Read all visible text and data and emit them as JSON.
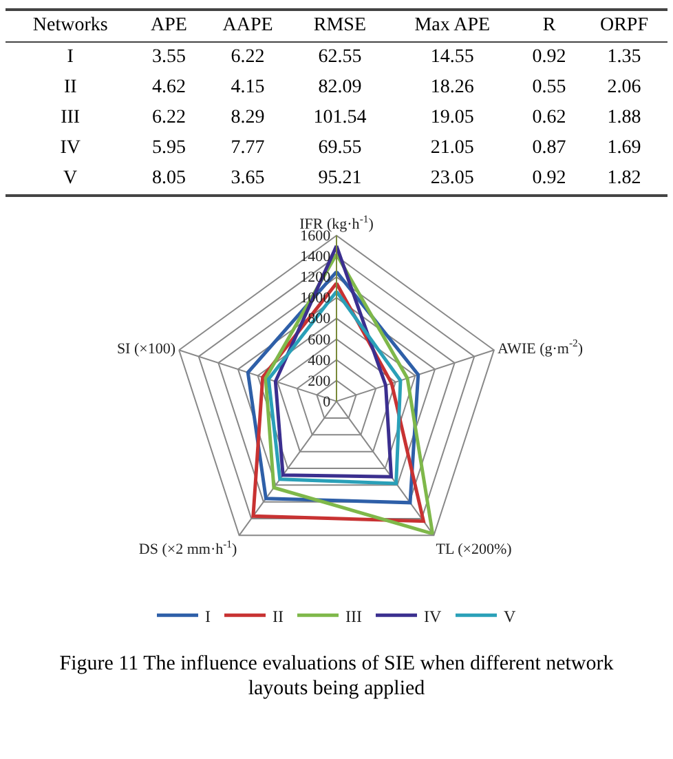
{
  "chart_data": [
    {
      "type": "heatmap",
      "ylabel": "Networks",
      "categories": [
        "APE",
        "AAPE",
        "RMSE",
        "Max APE",
        "R",
        "ORPF"
      ],
      "y_categories": [
        "I",
        "II",
        "III",
        "IV",
        "V"
      ],
      "data_labels": true,
      "cells": [
        [
          3.55,
          6.22,
          62.55,
          14.55,
          0.92,
          1.35
        ],
        [
          4.62,
          4.15,
          82.09,
          18.26,
          0.55,
          2.06
        ],
        [
          6.22,
          8.29,
          101.54,
          19.05,
          0.62,
          1.88
        ],
        [
          5.95,
          7.77,
          69.55,
          21.05,
          0.87,
          1.69
        ],
        [
          8.05,
          3.65,
          95.21,
          23.05,
          0.92,
          1.82
        ]
      ]
    },
    {
      "type": "radar",
      "title": "Figure 11    The influence evaluations of SIE when different network layouts being applied",
      "categories": [
        "IFR (kg·h$^{-1}$)",
        "AWIE (g·m$^{-2}$)",
        "TL (×200%)",
        "DS (×2 mm·h$^{-1}$)",
        "SI (×100)"
      ],
      "ylim": [
        0,
        1600
      ],
      "yticks": [
        0,
        200,
        400,
        600,
        800,
        1000,
        1200,
        1400,
        1600
      ],
      "grid": true,
      "legend": "bottom",
      "series": [
        {
          "name": "I",
          "color": "#2e5fa8",
          "values": [
            1250,
            830,
            1210,
            1160,
            900
          ]
        },
        {
          "name": "II",
          "color": "#c83232",
          "values": [
            1140,
            560,
            1430,
            1370,
            750
          ]
        },
        {
          "name": "III",
          "color": "#7fb84a",
          "values": [
            1420,
            720,
            1580,
            1030,
            720
          ]
        },
        {
          "name": "IV",
          "color": "#3b2f8f",
          "values": [
            1500,
            500,
            900,
            880,
            620
          ]
        },
        {
          "name": "V",
          "color": "#2aa0b8",
          "values": [
            1060,
            650,
            980,
            930,
            690
          ]
        }
      ]
    }
  ]
}
